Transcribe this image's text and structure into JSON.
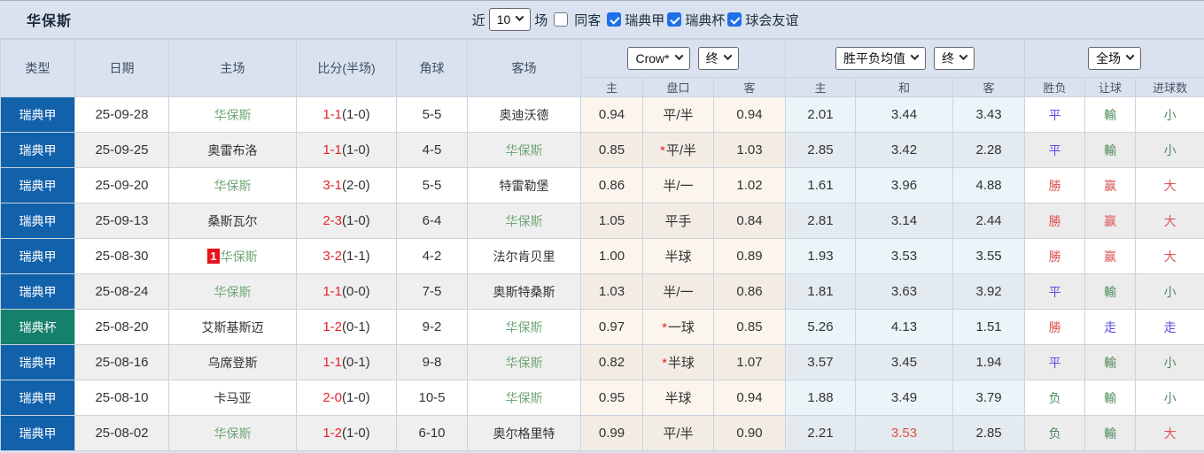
{
  "title": "华保斯",
  "filters": {
    "recent_label": "近",
    "recent_value": "10",
    "games_label": "场",
    "same_away_label": "同客",
    "same_away_checked": false,
    "leagues": [
      {
        "label": "瑞典甲",
        "checked": true
      },
      {
        "label": "瑞典杯",
        "checked": true
      },
      {
        "label": "球会友谊",
        "checked": true
      }
    ]
  },
  "colors": {
    "league_blue": "#1261ab",
    "cup_teal": "#15806c",
    "score_red": "#e8222d",
    "result_red": "#dd5454",
    "result_blue": "#5a50e0",
    "result_green": "#4e8a5e",
    "team_highlight_green": "#72a77a",
    "avg_red": "#e0523e"
  },
  "table": {
    "columns": [
      "类型",
      "日期",
      "主场",
      "比分(半场)",
      "角球",
      "客场"
    ],
    "odds_group": {
      "bookmaker_select": "Crow*",
      "state_select": "终",
      "sub": [
        "主",
        "盘口",
        "客"
      ]
    },
    "avg_group": {
      "metric_select": "胜平负均值",
      "state_select": "终",
      "sub": [
        "主",
        "和",
        "客"
      ]
    },
    "result_group": {
      "scope_select": "全场",
      "sub": [
        "胜负",
        "让球",
        "进球数"
      ]
    },
    "rows": [
      {
        "type": "瑞典甲",
        "type_color": "blue",
        "date": "25-09-28",
        "home": "华保斯",
        "home_hl": true,
        "home_badge": "",
        "score_ft": "1-1",
        "score_ht": "(1-0)",
        "corners": "5-5",
        "away": "奥迪沃德",
        "away_hl": false,
        "odds_home": "0.94",
        "handicap": "平/半",
        "handicap_star": false,
        "odds_away": "0.94",
        "avg_home": "2.01",
        "avg_draw": "3.44",
        "avg_draw_red": false,
        "avg_away": "3.43",
        "res_wdl": {
          "t": "平",
          "c": "blue"
        },
        "res_handicap": {
          "t": "輸",
          "c": "green"
        },
        "res_goals": {
          "t": "小",
          "c": "green"
        }
      },
      {
        "type": "瑞典甲",
        "type_color": "blue",
        "date": "25-09-25",
        "home": "奥雷布洛",
        "home_hl": false,
        "home_badge": "",
        "score_ft": "1-1",
        "score_ht": "(1-0)",
        "corners": "4-5",
        "away": "华保斯",
        "away_hl": true,
        "odds_home": "0.85",
        "handicap": "平/半",
        "handicap_star": true,
        "odds_away": "1.03",
        "avg_home": "2.85",
        "avg_draw": "3.42",
        "avg_draw_red": false,
        "avg_away": "2.28",
        "res_wdl": {
          "t": "平",
          "c": "blue"
        },
        "res_handicap": {
          "t": "輸",
          "c": "green"
        },
        "res_goals": {
          "t": "小",
          "c": "green"
        }
      },
      {
        "type": "瑞典甲",
        "type_color": "blue",
        "date": "25-09-20",
        "home": "华保斯",
        "home_hl": true,
        "home_badge": "",
        "score_ft": "3-1",
        "score_ht": "(2-0)",
        "corners": "5-5",
        "away": "特雷勒堡",
        "away_hl": false,
        "odds_home": "0.86",
        "handicap": "半/一",
        "handicap_star": false,
        "odds_away": "1.02",
        "avg_home": "1.61",
        "avg_draw": "3.96",
        "avg_draw_red": false,
        "avg_away": "4.88",
        "res_wdl": {
          "t": "勝",
          "c": "red"
        },
        "res_handicap": {
          "t": "赢",
          "c": "red"
        },
        "res_goals": {
          "t": "大",
          "c": "red"
        }
      },
      {
        "type": "瑞典甲",
        "type_color": "blue",
        "date": "25-09-13",
        "home": "桑斯瓦尔",
        "home_hl": false,
        "home_badge": "",
        "score_ft": "2-3",
        "score_ht": "(1-0)",
        "corners": "6-4",
        "away": "华保斯",
        "away_hl": true,
        "odds_home": "1.05",
        "handicap": "平手",
        "handicap_star": false,
        "odds_away": "0.84",
        "avg_home": "2.81",
        "avg_draw": "3.14",
        "avg_draw_red": false,
        "avg_away": "2.44",
        "res_wdl": {
          "t": "勝",
          "c": "red"
        },
        "res_handicap": {
          "t": "赢",
          "c": "red"
        },
        "res_goals": {
          "t": "大",
          "c": "red"
        }
      },
      {
        "type": "瑞典甲",
        "type_color": "blue",
        "date": "25-08-30",
        "home": "华保斯",
        "home_hl": true,
        "home_badge": "1",
        "score_ft": "3-2",
        "score_ht": "(1-1)",
        "corners": "4-2",
        "away": "法尔肯贝里",
        "away_hl": false,
        "odds_home": "1.00",
        "handicap": "半球",
        "handicap_star": false,
        "odds_away": "0.89",
        "avg_home": "1.93",
        "avg_draw": "3.53",
        "avg_draw_red": false,
        "avg_away": "3.55",
        "res_wdl": {
          "t": "勝",
          "c": "red"
        },
        "res_handicap": {
          "t": "赢",
          "c": "red"
        },
        "res_goals": {
          "t": "大",
          "c": "red"
        }
      },
      {
        "type": "瑞典甲",
        "type_color": "blue",
        "date": "25-08-24",
        "home": "华保斯",
        "home_hl": true,
        "home_badge": "",
        "score_ft": "1-1",
        "score_ht": "(0-0)",
        "corners": "7-5",
        "away": "奥斯特桑斯",
        "away_hl": false,
        "odds_home": "1.03",
        "handicap": "半/一",
        "handicap_star": false,
        "odds_away": "0.86",
        "avg_home": "1.81",
        "avg_draw": "3.63",
        "avg_draw_red": false,
        "avg_away": "3.92",
        "res_wdl": {
          "t": "平",
          "c": "blue"
        },
        "res_handicap": {
          "t": "輸",
          "c": "green"
        },
        "res_goals": {
          "t": "小",
          "c": "green"
        }
      },
      {
        "type": "瑞典杯",
        "type_color": "teal",
        "date": "25-08-20",
        "home": "艾斯基斯迈",
        "home_hl": false,
        "home_badge": "",
        "score_ft": "1-2",
        "score_ht": "(0-1)",
        "corners": "9-2",
        "away": "华保斯",
        "away_hl": true,
        "odds_home": "0.97",
        "handicap": "一球",
        "handicap_star": true,
        "odds_away": "0.85",
        "avg_home": "5.26",
        "avg_draw": "4.13",
        "avg_draw_red": false,
        "avg_away": "1.51",
        "res_wdl": {
          "t": "勝",
          "c": "red"
        },
        "res_handicap": {
          "t": "走",
          "c": "blue"
        },
        "res_goals": {
          "t": "走",
          "c": "blue"
        }
      },
      {
        "type": "瑞典甲",
        "type_color": "blue",
        "date": "25-08-16",
        "home": "乌席登斯",
        "home_hl": false,
        "home_badge": "",
        "score_ft": "1-1",
        "score_ht": "(0-1)",
        "corners": "9-8",
        "away": "华保斯",
        "away_hl": true,
        "odds_home": "0.82",
        "handicap": "半球",
        "handicap_star": true,
        "odds_away": "1.07",
        "avg_home": "3.57",
        "avg_draw": "3.45",
        "avg_draw_red": false,
        "avg_away": "1.94",
        "res_wdl": {
          "t": "平",
          "c": "blue"
        },
        "res_handicap": {
          "t": "輸",
          "c": "green"
        },
        "res_goals": {
          "t": "小",
          "c": "green"
        }
      },
      {
        "type": "瑞典甲",
        "type_color": "blue",
        "date": "25-08-10",
        "home": "卡马亚",
        "home_hl": false,
        "home_badge": "",
        "score_ft": "2-0",
        "score_ht": "(1-0)",
        "corners": "10-5",
        "away": "华保斯",
        "away_hl": true,
        "odds_home": "0.95",
        "handicap": "半球",
        "handicap_star": false,
        "odds_away": "0.94",
        "avg_home": "1.88",
        "avg_draw": "3.49",
        "avg_draw_red": false,
        "avg_away": "3.79",
        "res_wdl": {
          "t": "负",
          "c": "green"
        },
        "res_handicap": {
          "t": "輸",
          "c": "green"
        },
        "res_goals": {
          "t": "小",
          "c": "green"
        }
      },
      {
        "type": "瑞典甲",
        "type_color": "blue",
        "date": "25-08-02",
        "home": "华保斯",
        "home_hl": true,
        "home_badge": "",
        "score_ft": "1-2",
        "score_ht": "(1-0)",
        "corners": "6-10",
        "away": "奥尔格里特",
        "away_hl": false,
        "odds_home": "0.99",
        "handicap": "平/半",
        "handicap_star": false,
        "odds_away": "0.90",
        "avg_home": "2.21",
        "avg_draw": "3.53",
        "avg_draw_red": true,
        "avg_away": "2.85",
        "res_wdl": {
          "t": "负",
          "c": "green"
        },
        "res_handicap": {
          "t": "輸",
          "c": "green"
        },
        "res_goals": {
          "t": "大",
          "c": "red"
        }
      }
    ]
  }
}
